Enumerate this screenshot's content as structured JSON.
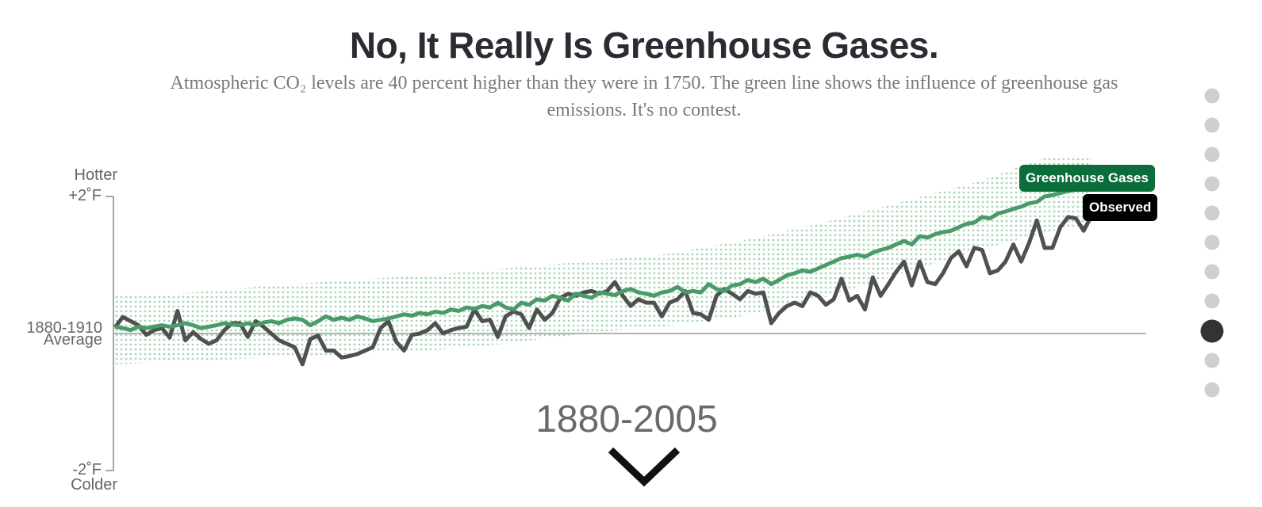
{
  "chart_data": {
    "type": "line",
    "title": "No, It Really Is Greenhouse Gases.",
    "subtitle": "Atmospheric CO₂ levels are 40 percent higher than they were in 1750. The green line shows the influence of greenhouse gas emissions. It's no contest.",
    "y_top_label": "Hotter",
    "y_bottom_label": "Colder",
    "period": "1880-2005",
    "xlim": [
      1880,
      2012
    ],
    "ylim": [
      -2,
      2
    ],
    "yticks": [
      {
        "value": 2,
        "label": "+2˚F"
      },
      {
        "value": 0,
        "label": "1880-1910 Average"
      },
      {
        "value": -2,
        "label": "-2˚F"
      }
    ],
    "x": [
      1880,
      1881,
      1882,
      1883,
      1884,
      1885,
      1886,
      1887,
      1888,
      1889,
      1890,
      1891,
      1892,
      1893,
      1894,
      1895,
      1896,
      1897,
      1898,
      1899,
      1900,
      1901,
      1902,
      1903,
      1904,
      1905,
      1906,
      1907,
      1908,
      1909,
      1910,
      1911,
      1912,
      1913,
      1914,
      1915,
      1916,
      1917,
      1918,
      1919,
      1920,
      1921,
      1922,
      1923,
      1924,
      1925,
      1926,
      1927,
      1928,
      1929,
      1930,
      1931,
      1932,
      1933,
      1934,
      1935,
      1936,
      1937,
      1938,
      1939,
      1940,
      1941,
      1942,
      1943,
      1944,
      1945,
      1946,
      1947,
      1948,
      1949,
      1950,
      1951,
      1952,
      1953,
      1954,
      1955,
      1956,
      1957,
      1958,
      1959,
      1960,
      1961,
      1962,
      1963,
      1964,
      1965,
      1966,
      1967,
      1968,
      1969,
      1970,
      1971,
      1972,
      1973,
      1974,
      1975,
      1976,
      1977,
      1978,
      1979,
      1980,
      1981,
      1982,
      1983,
      1984,
      1985,
      1986,
      1987,
      1988,
      1989,
      1990,
      1991,
      1992,
      1993,
      1994,
      1995,
      1996,
      1997,
      1998,
      1999,
      2000,
      2001,
      2002,
      2003,
      2004,
      2005
    ],
    "series": [
      {
        "name": "Greenhouse Gases",
        "color": "#4a9a6a",
        "label_color": "#0b6e3a",
        "values": [
          0.1,
          0.08,
          0.05,
          0.1,
          0.08,
          0.1,
          0.12,
          0.1,
          0.12,
          0.15,
          0.12,
          0.08,
          0.1,
          0.12,
          0.15,
          0.13,
          0.12,
          0.15,
          0.12,
          0.16,
          0.18,
          0.15,
          0.2,
          0.22,
          0.2,
          0.12,
          0.18,
          0.25,
          0.2,
          0.23,
          0.2,
          0.25,
          0.22,
          0.18,
          0.2,
          0.22,
          0.25,
          0.28,
          0.26,
          0.3,
          0.28,
          0.32,
          0.3,
          0.35,
          0.33,
          0.38,
          0.36,
          0.4,
          0.38,
          0.45,
          0.38,
          0.35,
          0.45,
          0.42,
          0.5,
          0.48,
          0.55,
          0.52,
          0.48,
          0.58,
          0.55,
          0.52,
          0.6,
          0.58,
          0.56,
          0.62,
          0.65,
          0.6,
          0.58,
          0.55,
          0.6,
          0.62,
          0.68,
          0.6,
          0.62,
          0.6,
          0.72,
          0.65,
          0.62,
          0.7,
          0.72,
          0.78,
          0.75,
          0.8,
          0.72,
          0.78,
          0.85,
          0.88,
          0.92,
          0.9,
          0.95,
          1.0,
          1.05,
          1.1,
          1.12,
          1.15,
          1.12,
          1.18,
          1.22,
          1.25,
          1.3,
          1.35,
          1.3,
          1.42,
          1.4,
          1.45,
          1.48,
          1.5,
          1.55,
          1.6,
          1.62,
          1.7,
          1.68,
          1.75,
          1.78,
          1.82,
          1.85,
          1.9,
          1.92,
          2.0,
          2.02,
          2.05,
          2.08,
          2.1,
          2.12,
          2.15
        ]
      },
      {
        "name": "Observed",
        "color": "#505050",
        "label_color": "#000000",
        "values": [
          0.09,
          0.24,
          0.18,
          0.12,
          -0.02,
          0.05,
          0.08,
          -0.06,
          0.33,
          -0.1,
          0.02,
          -0.08,
          -0.15,
          -0.1,
          0.05,
          0.15,
          0.15,
          -0.05,
          0.18,
          0.1,
          0.0,
          -0.1,
          -0.15,
          -0.2,
          -0.45,
          -0.08,
          -0.03,
          -0.25,
          -0.25,
          -0.35,
          -0.33,
          -0.3,
          -0.25,
          -0.2,
          0.08,
          0.18,
          -0.12,
          -0.25,
          -0.02,
          0.0,
          0.05,
          0.15,
          0.0,
          0.05,
          0.08,
          0.1,
          0.35,
          0.18,
          0.2,
          -0.05,
          0.25,
          0.32,
          0.28,
          0.08,
          0.35,
          0.2,
          0.3,
          0.52,
          0.58,
          0.55,
          0.6,
          0.62,
          0.58,
          0.62,
          0.75,
          0.55,
          0.4,
          0.5,
          0.45,
          0.45,
          0.25,
          0.45,
          0.5,
          0.62,
          0.3,
          0.28,
          0.2,
          0.55,
          0.65,
          0.58,
          0.5,
          0.62,
          0.58,
          0.6,
          0.15,
          0.3,
          0.4,
          0.45,
          0.4,
          0.6,
          0.55,
          0.42,
          0.5,
          0.8,
          0.48,
          0.55,
          0.35,
          0.82,
          0.55,
          0.72,
          0.9,
          1.05,
          0.7,
          1.05,
          0.75,
          0.72,
          0.88,
          1.1,
          1.2,
          0.98,
          1.25,
          1.22,
          0.88,
          0.92,
          1.05,
          1.3,
          1.05,
          1.32,
          1.65,
          1.25,
          1.25,
          1.55,
          1.7,
          1.68,
          1.5,
          1.72
        ]
      }
    ],
    "band": {
      "color": "#a9d6b6",
      "x": [
        1880,
        1890,
        1900,
        1910,
        1920,
        1930,
        1940,
        1950,
        1960,
        1970,
        1980,
        1990,
        2000,
        2005
      ],
      "high": [
        0.55,
        0.6,
        0.7,
        0.78,
        0.85,
        0.95,
        1.05,
        1.15,
        1.35,
        1.6,
        1.9,
        2.2,
        2.6,
        2.6
      ],
      "low": [
        -0.45,
        -0.4,
        -0.35,
        -0.3,
        -0.25,
        -0.15,
        0.0,
        0.1,
        0.25,
        0.5,
        0.85,
        1.2,
        1.5,
        1.55
      ]
    }
  }
}
